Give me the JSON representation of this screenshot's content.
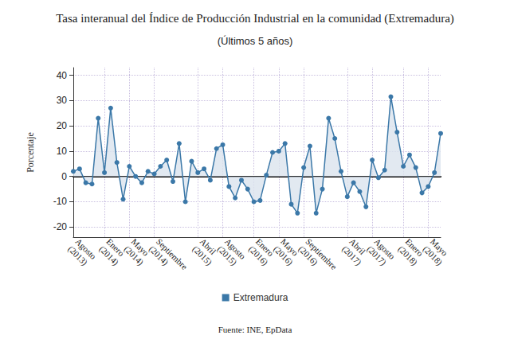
{
  "chart_data": {
    "type": "line",
    "title": "Tasa interanual del Índice de Producción Industrial en la comunidad (Extremadura)",
    "subtitle": "(Últimos 5 años)",
    "ylabel": "Porcentaje",
    "source": "Fuente: INE, EpData",
    "categories": [
      "Agosto\n(2013)",
      null,
      null,
      null,
      null,
      "Enero\n(2014)",
      null,
      null,
      null,
      "Mayo\n(2014)",
      null,
      null,
      null,
      "Septiembre\n(2014)",
      null,
      null,
      null,
      null,
      null,
      null,
      "Abril\n(2015)",
      null,
      null,
      null,
      "Agosto\n(2015)",
      null,
      null,
      null,
      null,
      "Enero\n(2016)",
      null,
      null,
      null,
      "Mayo\n(2016)",
      null,
      null,
      null,
      "Septiembre\n(2016)",
      null,
      null,
      null,
      null,
      null,
      null,
      "Abril\n(2017)",
      null,
      null,
      null,
      "Agosto\n(2017)",
      null,
      null,
      null,
      null,
      "Enero\n(2018)",
      null,
      null,
      null,
      "Mayo\n(2018)",
      null,
      null
    ],
    "series": [
      {
        "name": "Extremadura",
        "color": "#3b78a8",
        "marker": "circle",
        "values": [
          2,
          3,
          -2.5,
          -3,
          23,
          1.5,
          27,
          5.5,
          -9,
          4,
          0,
          -2.5,
          2,
          1,
          4,
          6.5,
          -2,
          13,
          -10,
          6,
          1.5,
          3,
          -1.5,
          11,
          12.5,
          -4,
          -8.5,
          -1.5,
          -5,
          -10,
          -9.5,
          0.5,
          9.5,
          10,
          13,
          -11,
          -14.5,
          3.5,
          12,
          -14.5,
          -5,
          23,
          15,
          2,
          -8,
          -2.5,
          -6,
          -12,
          6.5,
          -0.5,
          2.5,
          31.5,
          17.5,
          4,
          8.5,
          3.5,
          -6.5,
          -4,
          1.5,
          17
        ]
      }
    ],
    "ylim": [
      -24,
      43
    ],
    "yticks": [
      -20,
      -10,
      0,
      10,
      20,
      30,
      40
    ],
    "grid": true,
    "legend": "bottom"
  }
}
